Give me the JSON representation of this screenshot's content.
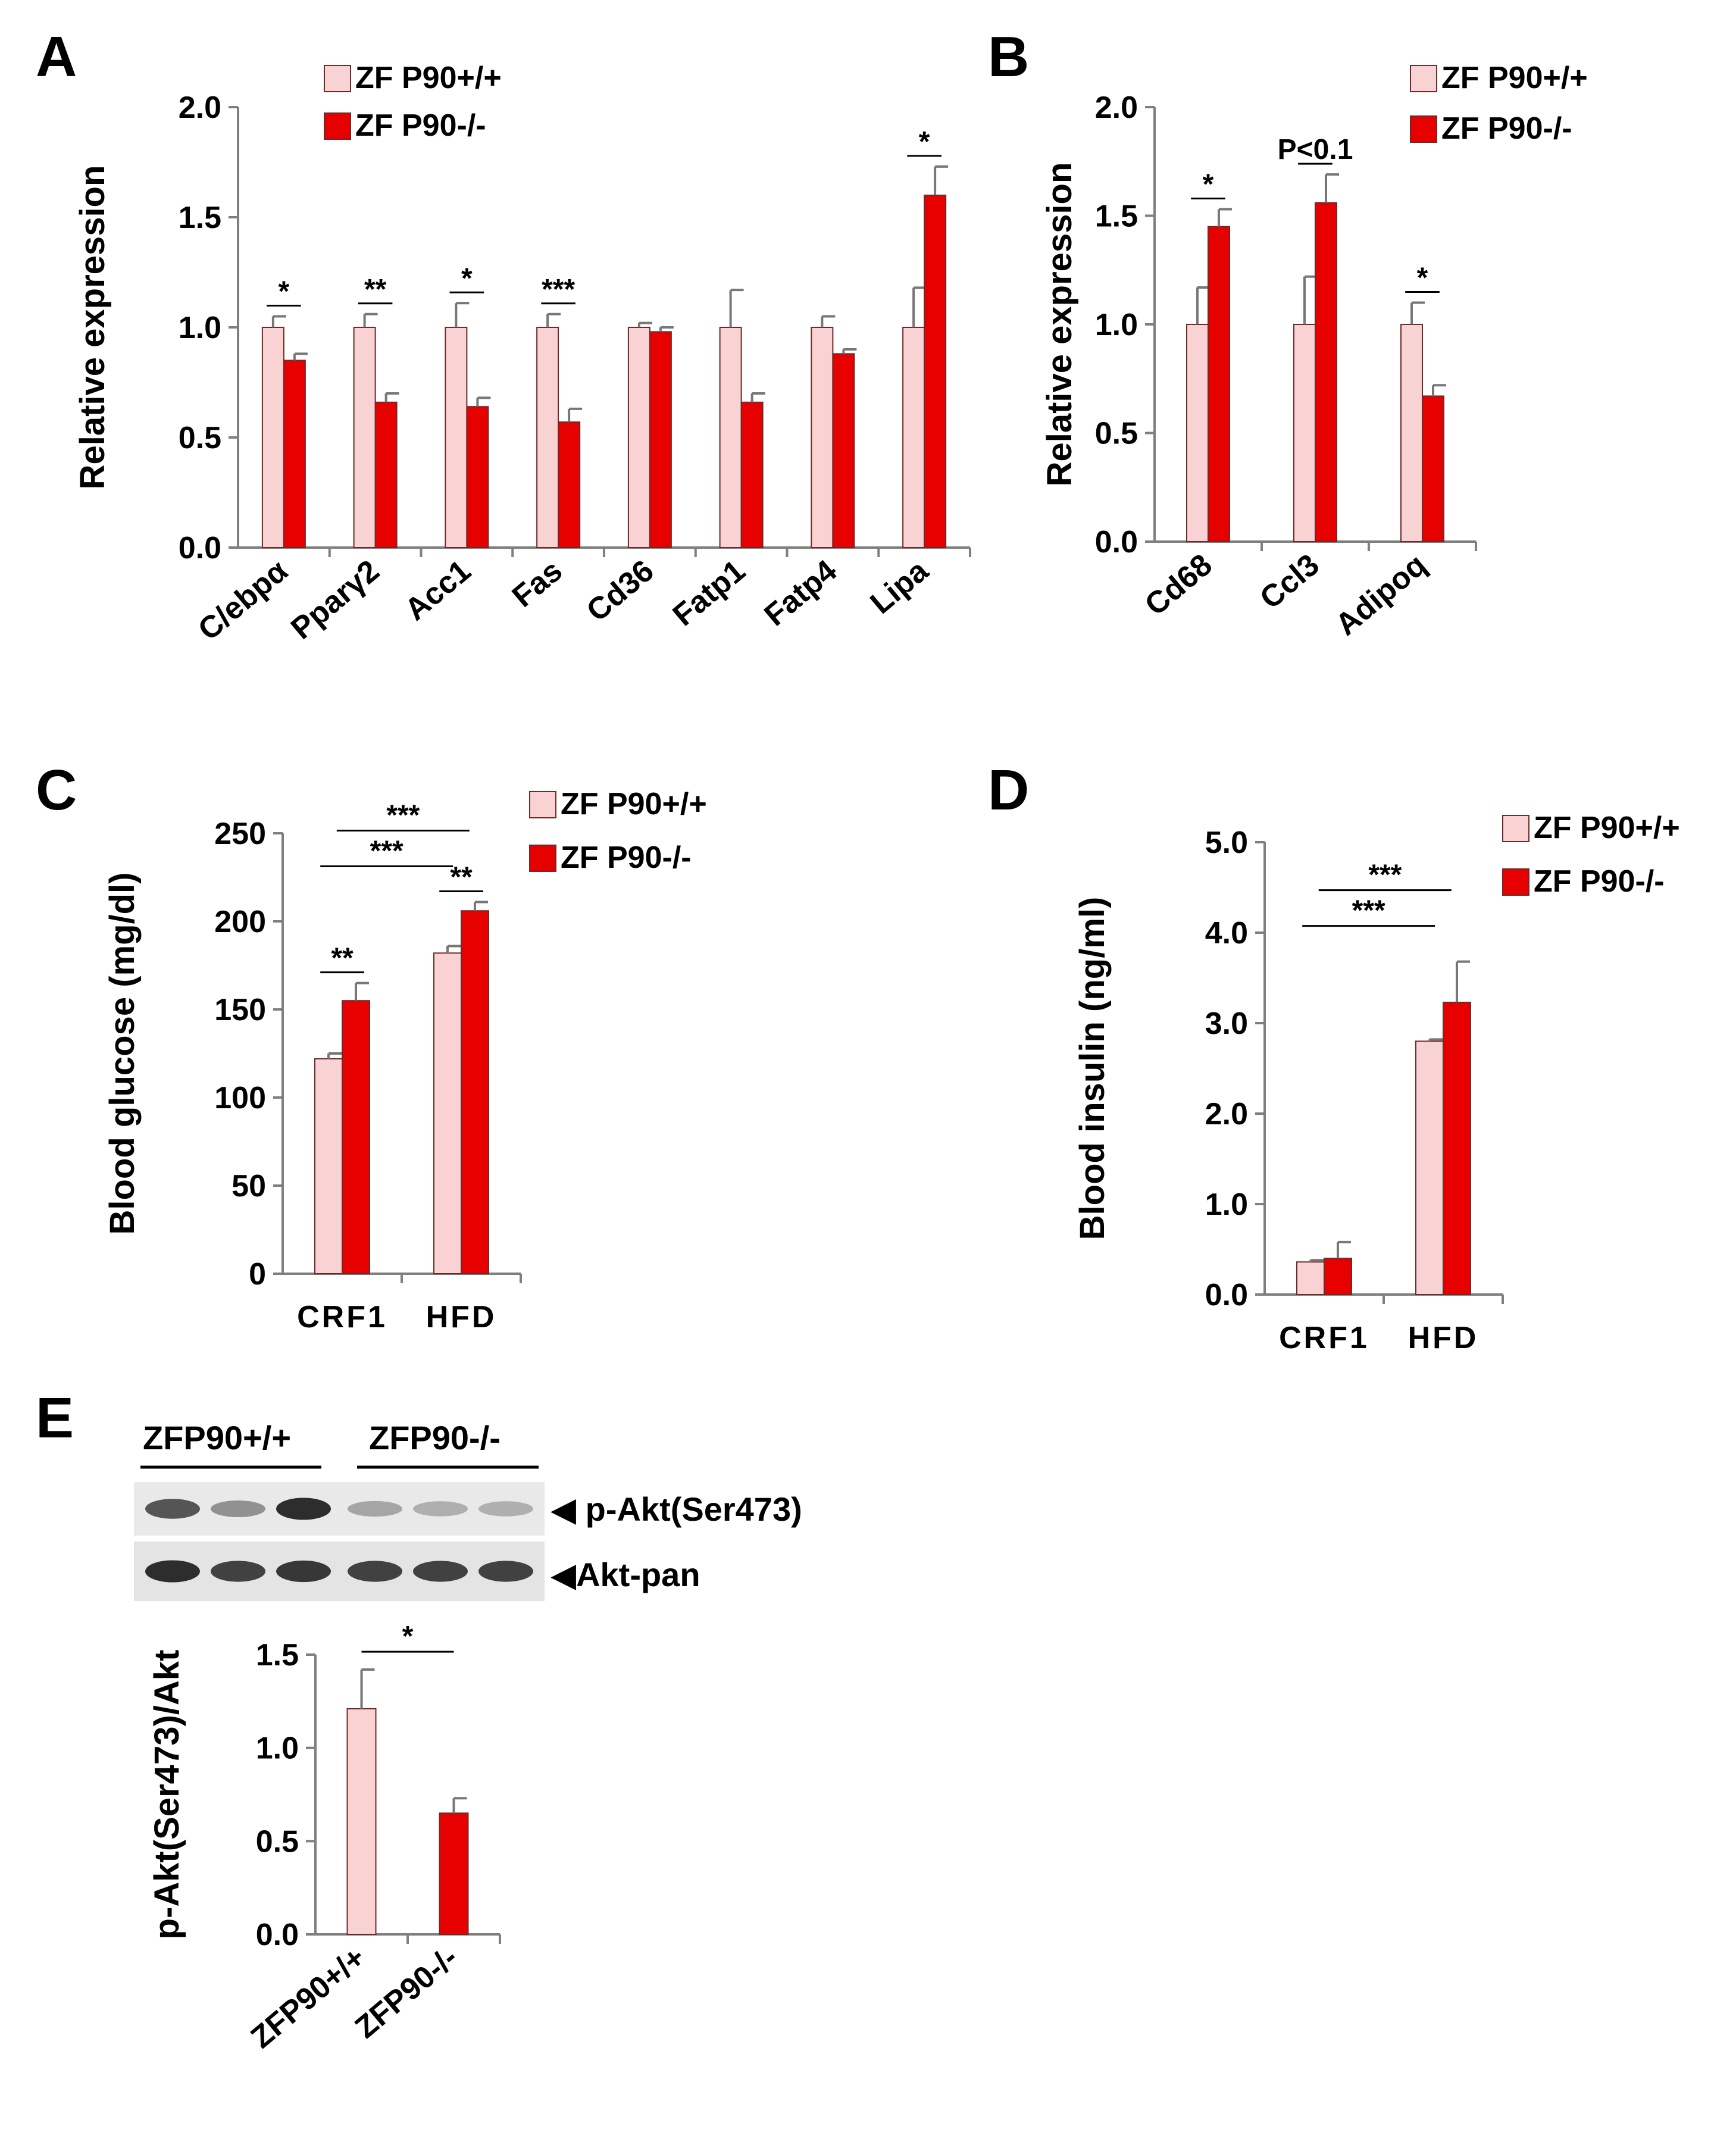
{
  "panels": {
    "A": "A",
    "B": "B",
    "C": "C",
    "D": "D",
    "E": "E"
  },
  "colors": {
    "wildtype": "#f9d3d3",
    "knockout": "#e60000",
    "axis": "#7f7f7f",
    "bar_edge": "#6e2a2a"
  },
  "chart_data": [
    {
      "id": "A",
      "type": "bar",
      "ylabel": "Relative expression",
      "ylim": [
        0,
        2.0
      ],
      "yticks": [
        "0.0",
        "0.5",
        "1.0",
        "1.5",
        "2.0"
      ],
      "categories": [
        "C/ebpα",
        "Pparγ2",
        "Acc1",
        "Fas",
        "Cd36",
        "Fatp1",
        "Fatp4",
        "Lipa"
      ],
      "series": [
        {
          "name": "ZF P90+/+",
          "values": [
            1.0,
            1.0,
            1.0,
            1.0,
            1.0,
            1.0,
            1.0,
            1.0
          ],
          "errors": [
            0.05,
            0.06,
            0.11,
            0.06,
            0.02,
            0.17,
            0.05,
            0.18
          ]
        },
        {
          "name": "ZF P90-/-",
          "values": [
            0.85,
            0.66,
            0.64,
            0.57,
            0.98,
            0.66,
            0.88,
            1.6
          ],
          "errors": [
            0.03,
            0.04,
            0.04,
            0.06,
            0.02,
            0.04,
            0.02,
            0.13
          ]
        }
      ],
      "significance": [
        "*",
        "**",
        "*",
        "***",
        "",
        "",
        "",
        "*"
      ],
      "legend": "top-left"
    },
    {
      "id": "B",
      "type": "bar",
      "ylabel": "Relative expression",
      "ylim": [
        0,
        2.0
      ],
      "yticks": [
        "0.0",
        "0.5",
        "1.0",
        "1.5",
        "2.0"
      ],
      "categories": [
        "Cd68",
        "Ccl3",
        "Adipoq"
      ],
      "series": [
        {
          "name": "ZF P90+/+",
          "values": [
            1.0,
            1.0,
            1.0
          ],
          "errors": [
            0.17,
            0.22,
            0.1
          ]
        },
        {
          "name": "ZF P90-/-",
          "values": [
            1.45,
            1.56,
            0.67
          ],
          "errors": [
            0.08,
            0.13,
            0.05
          ]
        }
      ],
      "significance": [
        "*",
        "P<0.1",
        "*"
      ],
      "legend": "top-right"
    },
    {
      "id": "C",
      "type": "bar",
      "ylabel": "Blood glucose (mg/dl)",
      "ylim": [
        0,
        250
      ],
      "yticks": [
        "0",
        "50",
        "100",
        "150",
        "200",
        "250"
      ],
      "categories": [
        "CRF1",
        "HFD"
      ],
      "series": [
        {
          "name": "ZF P90+/+",
          "values": [
            122,
            182
          ],
          "errors": [
            3,
            4
          ]
        },
        {
          "name": "ZF P90-/-",
          "values": [
            155,
            206
          ],
          "errors": [
            10,
            5
          ]
        }
      ],
      "significance_within": [
        "**",
        "**"
      ],
      "significance_between": [
        "***",
        "***"
      ],
      "legend": "top-right"
    },
    {
      "id": "D",
      "type": "bar",
      "ylabel": "Blood insulin (ng/ml)",
      "ylim": [
        0,
        5.0
      ],
      "yticks": [
        "0.0",
        "1.0",
        "2.0",
        "3.0",
        "4.0",
        "5.0"
      ],
      "categories": [
        "CRF1",
        "HFD"
      ],
      "series": [
        {
          "name": "ZF P90+/+",
          "values": [
            0.36,
            2.8
          ],
          "errors": [
            0.02,
            0.02
          ]
        },
        {
          "name": "ZF P90-/-",
          "values": [
            0.4,
            3.23
          ],
          "errors": [
            0.18,
            0.45
          ]
        }
      ],
      "significance_between": [
        "***",
        "***"
      ],
      "legend": "top-right"
    },
    {
      "id": "E",
      "type": "bar",
      "ylabel": "p-Akt(Ser473)/Akt",
      "ylim": [
        0,
        1.5
      ],
      "yticks": [
        "0.0",
        "0.5",
        "1.0",
        "1.5"
      ],
      "categories": [
        "ZFP90+/+",
        "ZFP90-/-"
      ],
      "series": [
        {
          "name": "",
          "values": [
            1.21,
            0.65
          ],
          "errors": [
            0.21,
            0.08
          ]
        }
      ],
      "significance": "*"
    }
  ],
  "blot": {
    "groups": [
      "ZFP90+/+",
      "ZFP90-/-"
    ],
    "bands": [
      {
        "label": "p-Akt(Ser473)",
        "intensities": [
          0.75,
          0.45,
          0.95,
          0.35,
          0.3,
          0.3
        ]
      },
      {
        "label": "Akt-pan",
        "intensities": [
          0.95,
          0.85,
          0.9,
          0.85,
          0.85,
          0.85
        ]
      }
    ]
  }
}
